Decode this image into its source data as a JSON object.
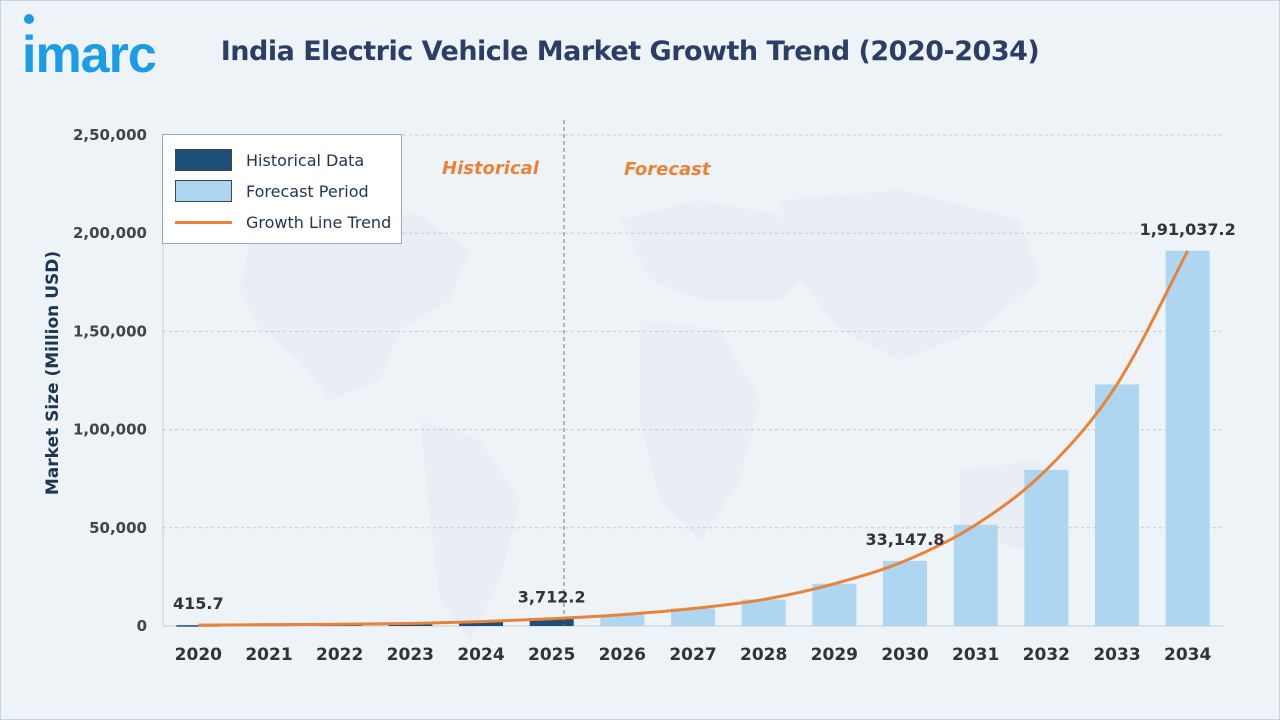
{
  "logo": {
    "text": "imarc"
  },
  "title": "India Electric Vehicle Market Growth Trend (2020-2034)",
  "legend": {
    "historical": "Historical Data",
    "forecast": "Forecast Period",
    "trend": "Growth Line Trend"
  },
  "period_labels": {
    "historical": "Historical",
    "forecast": "Forecast"
  },
  "colors": {
    "historical": "#1f4e79",
    "forecast": "#aed6f1",
    "trend": "#e8833a",
    "title": "#2c3e63"
  },
  "chart_data": {
    "type": "bar",
    "title": "India Electric Vehicle Market Growth Trend (2020-2034)",
    "xlabel": "",
    "ylabel": "Market Size (Million USD)",
    "ylim": [
      0,
      250000
    ],
    "yticks": [
      0,
      50000,
      100000,
      150000,
      200000,
      250000
    ],
    "ytick_labels": [
      "0",
      "50,000",
      "1,00,000",
      "1,50,000",
      "2,00,000",
      "2,50,000"
    ],
    "grid": true,
    "legend_position": "top-left",
    "categories": [
      "2020",
      "2021",
      "2022",
      "2023",
      "2024",
      "2025",
      "2026",
      "2027",
      "2028",
      "2029",
      "2030",
      "2031",
      "2032",
      "2033",
      "2034"
    ],
    "series": [
      {
        "name": "Historical Data",
        "type": "bar",
        "values": [
          415.7,
          700,
          900,
          1300,
          2200,
          3712.2,
          null,
          null,
          null,
          null,
          null,
          null,
          null,
          null,
          null
        ]
      },
      {
        "name": "Forecast Period",
        "type": "bar",
        "values": [
          null,
          null,
          null,
          null,
          null,
          null,
          5800,
          8900,
          13500,
          21500,
          33147.8,
          51500,
          79500,
          123000,
          191037.2
        ]
      },
      {
        "name": "Growth Line Trend",
        "type": "line",
        "values": [
          415.7,
          700,
          900,
          1300,
          2200,
          3712.2,
          5800,
          8900,
          13500,
          21500,
          33147.8,
          51500,
          79500,
          123000,
          191037.2
        ]
      }
    ],
    "data_labels": [
      {
        "category": "2020",
        "text": "415.7"
      },
      {
        "category": "2025",
        "text": "3,712.2"
      },
      {
        "category": "2030",
        "text": "33,147.8"
      },
      {
        "category": "2034",
        "text": "1,91,037.2"
      }
    ]
  }
}
